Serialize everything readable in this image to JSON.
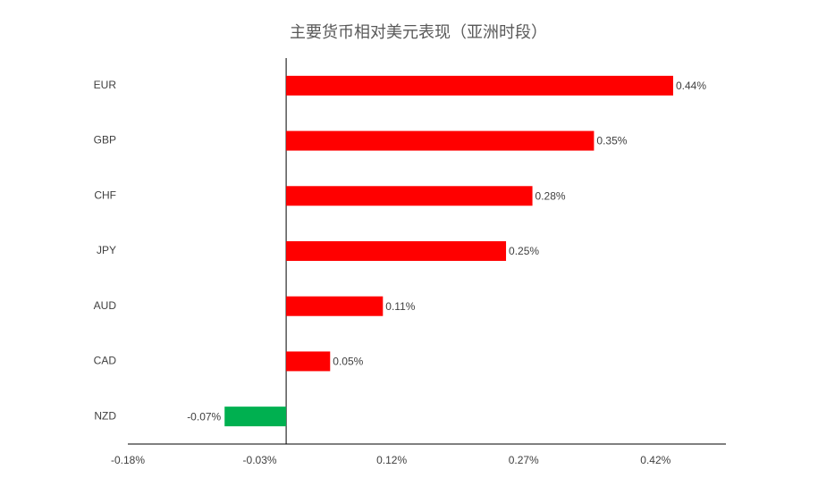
{
  "chart_data": {
    "type": "hbar",
    "title": "主要货币相对美元表现（亚洲时段）",
    "categories": [
      "EUR",
      "GBP",
      "CHF",
      "JPY",
      "AUD",
      "CAD",
      "NZD"
    ],
    "values": [
      0.44,
      0.35,
      0.28,
      0.25,
      0.11,
      0.05,
      -0.07
    ],
    "value_labels": [
      "0.44%",
      "0.35%",
      "0.28%",
      "0.25%",
      "0.11%",
      "0.05%",
      "-0.07%"
    ],
    "colors": [
      "#ff0000",
      "#ff0000",
      "#ff0000",
      "#ff0000",
      "#ff0000",
      "#ff0000",
      "#00b050"
    ],
    "xlim": [
      -0.18,
      0.5
    ],
    "xticks": [
      {
        "value": -0.18,
        "label": "-0.18%"
      },
      {
        "value": -0.03,
        "label": "-0.03%"
      },
      {
        "value": 0.12,
        "label": "0.12%"
      },
      {
        "value": 0.27,
        "label": "0.27%"
      },
      {
        "value": 0.42,
        "label": "0.42%"
      }
    ],
    "grid": false
  }
}
